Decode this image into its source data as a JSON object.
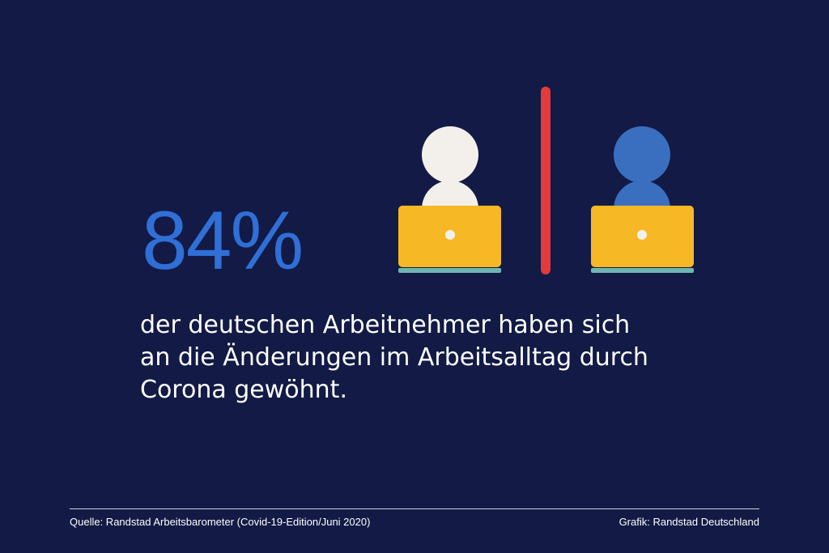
{
  "colors": {
    "background": "#121a45",
    "accent_blue": "#2f6fd6",
    "text_white": "#ffffff",
    "person_white": "#f3f0ec",
    "person_blue": "#3a6fc0",
    "laptop_yellow": "#f6b824",
    "laptop_base": "#6fb6b1",
    "divider_red": "#e13b3b",
    "rule_line": "#cfd3e6"
  },
  "stat": {
    "value": "84%"
  },
  "description": {
    "line1": "der deutschen Arbeitnehmer haben sich",
    "line2": "an die Änderungen im Arbeitsalltag durch",
    "line3": "Corona gewöhnt."
  },
  "illustration": {
    "icons": [
      "person-at-laptop-icon",
      "vertical-divider-icon",
      "person-at-laptop-icon"
    ]
  },
  "footer": {
    "source": "Quelle: Randstad Arbeitsbarometer (Covid-19-Edition/Juni 2020)",
    "credit": "Grafik: Randstad Deutschland"
  }
}
